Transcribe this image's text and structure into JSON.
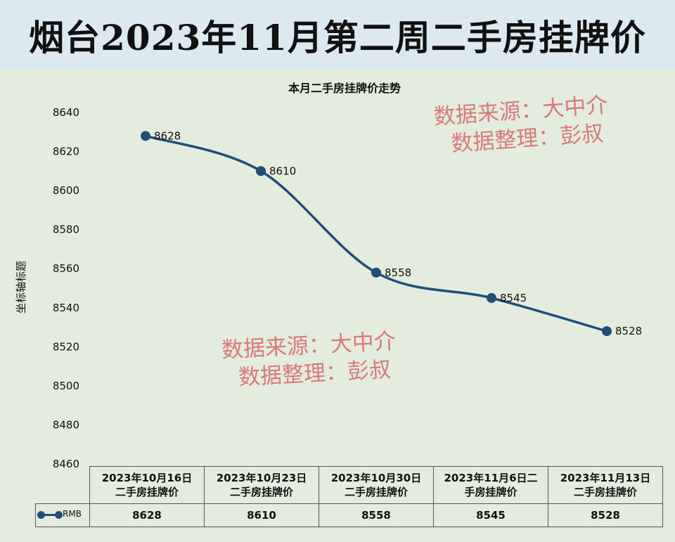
{
  "banner": {
    "title": "烟台2023年11月第二周二手房挂牌价"
  },
  "watermark": {
    "line1": "数据来源：大中介",
    "line2": "数据整理：彭叔"
  },
  "colors": {
    "line": "#1f4e79",
    "watermark": "#d9797a",
    "banner_bg": "#dce9f1",
    "plot_bg": "#e4ecdd"
  },
  "chart_data": {
    "type": "line",
    "title": "本月二手房挂牌价走势",
    "xlabel": "",
    "ylabel": "坐标轴标题",
    "ylim": [
      8460,
      8640
    ],
    "yticks": [
      8460,
      8480,
      8500,
      8520,
      8540,
      8560,
      8580,
      8600,
      8620,
      8640
    ],
    "categories": [
      "2023年10月16日二手房挂牌价",
      "2023年10月23日二手房挂牌价",
      "2023年10月30日二手房挂牌价",
      "2023年11月6日二手房挂牌价",
      "2023年11月13日二手房挂牌价"
    ],
    "category_lines": [
      [
        "2023年10月16日",
        "二手房挂牌价"
      ],
      [
        "2023年10月23日",
        "二手房挂牌价"
      ],
      [
        "2023年10月30日",
        "二手房挂牌价"
      ],
      [
        "2023年11月6日二",
        "手房挂牌价"
      ],
      [
        "2023年11月13日",
        "二手房挂牌价"
      ]
    ],
    "series": [
      {
        "name": "RMB",
        "values": [
          8628,
          8610,
          8558,
          8545,
          8528
        ]
      }
    ],
    "legend": "bottom-table",
    "grid": false
  }
}
